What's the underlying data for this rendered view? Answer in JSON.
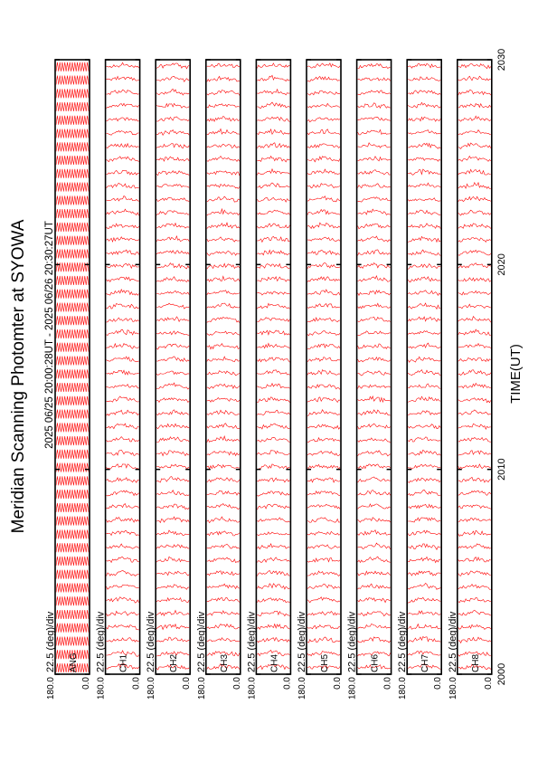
{
  "title": "Meridian Scanning Photomter at SYOWA",
  "time_range": "2025 06/25 20:00:28UT - 2025 06/26 20:30:27UT",
  "chart_data": {
    "type": "line",
    "title": "Meridian Scanning Photomter at SYOWA",
    "xlabel": "TIME(UT)",
    "x_ticks": [
      "2000",
      "2010",
      "2020",
      "2030"
    ],
    "xlim": [
      "2000",
      "2030"
    ],
    "ylim": [
      0.0,
      180.0
    ],
    "y_tick_labels": [
      "180.0",
      "0.0"
    ],
    "scale_label": "22.5 (deg)/div",
    "line_color": "#ff0000",
    "grid": false,
    "panels": [
      {
        "channel": "ANG"
      },
      {
        "channel": "CH1"
      },
      {
        "channel": "CH2"
      },
      {
        "channel": "CH3"
      },
      {
        "channel": "CH4"
      },
      {
        "channel": "CH5"
      },
      {
        "channel": "CH6"
      },
      {
        "channel": "CH7"
      },
      {
        "channel": "CH8"
      }
    ]
  }
}
